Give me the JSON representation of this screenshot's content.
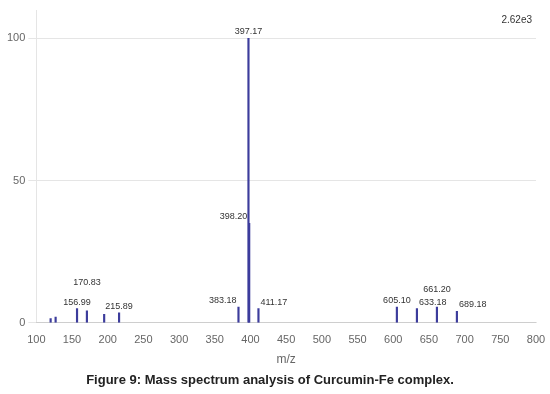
{
  "chart_data": {
    "type": "bar",
    "title": "Figure 9: Mass spectrum analysis of Curcumin-Fe complex.",
    "xlabel": "m/z",
    "x": [
      120.0,
      127.0,
      156.99,
      170.83,
      195.0,
      215.89,
      383.18,
      397.17,
      398.2,
      411.17,
      605.1,
      633.18,
      661.2,
      689.18
    ],
    "values": [
      1.5,
      2.0,
      5.0,
      4.2,
      3.0,
      3.5,
      5.5,
      100.0,
      35.0,
      5.0,
      5.5,
      5.0,
      5.5,
      4.0
    ],
    "color": "#3c3c9c",
    "xlim": [
      100,
      800
    ],
    "xticks": [
      100,
      150,
      200,
      250,
      300,
      350,
      400,
      450,
      500,
      550,
      600,
      650,
      700,
      750,
      800
    ],
    "ylim": [
      0,
      110
    ],
    "yticks": [
      0,
      50,
      100
    ],
    "grid": "y",
    "annotations": [
      {
        "x": 156.99,
        "y": 5.0,
        "text": "156.99"
      },
      {
        "x": 170.83,
        "y": 4.2,
        "text": "170.83"
      },
      {
        "x": 215.89,
        "y": 3.5,
        "text": "215.89"
      },
      {
        "x": 383.18,
        "y": 5.5,
        "text": "383.18"
      },
      {
        "x": 397.17,
        "y": 100.0,
        "text": "397.17"
      },
      {
        "x": 398.2,
        "y": 35.0,
        "text": "398.20"
      },
      {
        "x": 411.17,
        "y": 5.0,
        "text": "411.17"
      },
      {
        "x": 605.1,
        "y": 5.5,
        "text": "605.10"
      },
      {
        "x": 633.18,
        "y": 5.0,
        "text": "633.18"
      },
      {
        "x": 661.2,
        "y": 5.5,
        "text": "661.20"
      },
      {
        "x": 689.18,
        "y": 4.0,
        "text": "689.18"
      },
      {
        "text": "2.62e3"
      }
    ]
  }
}
